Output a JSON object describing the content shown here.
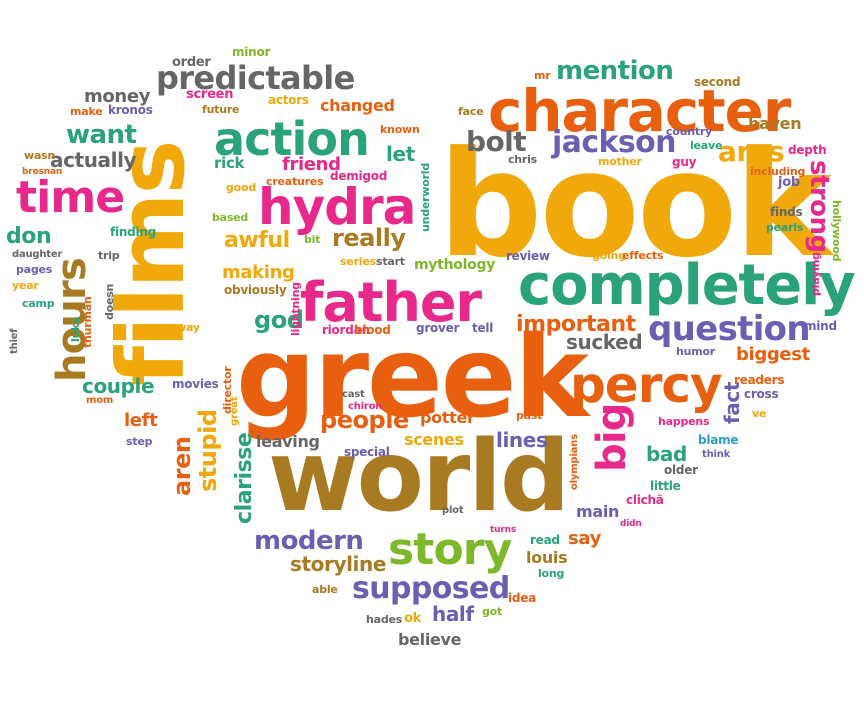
{
  "words": [
    {
      "text": "book",
      "color": "c-ye"
    },
    {
      "text": "greek",
      "color": "c-or"
    },
    {
      "text": "world",
      "color": "c-br"
    },
    {
      "text": "films",
      "color": "c-ye"
    },
    {
      "text": "character",
      "color": "c-or"
    },
    {
      "text": "completely",
      "color": "c-gr"
    },
    {
      "text": "father",
      "color": "c-pi"
    },
    {
      "text": "hydra",
      "color": "c-pi"
    },
    {
      "text": "action",
      "color": "c-gr"
    },
    {
      "text": "story",
      "color": "c-li"
    },
    {
      "text": "percy",
      "color": "c-or"
    },
    {
      "text": "time",
      "color": "c-pi"
    },
    {
      "text": "hours",
      "color": "c-br"
    },
    {
      "text": "question",
      "color": "c-pu"
    },
    {
      "text": "predictable",
      "color": "c-gy"
    },
    {
      "text": "jackson",
      "color": "c-pu"
    },
    {
      "text": "big",
      "color": "c-pi"
    },
    {
      "text": "bolt",
      "color": "c-gy"
    },
    {
      "text": "supposed",
      "color": "c-pu"
    },
    {
      "text": "mention",
      "color": "c-gr"
    },
    {
      "text": "ares",
      "color": "c-ye"
    },
    {
      "text": "strong",
      "color": "c-pi"
    },
    {
      "text": "modern",
      "color": "c-pu"
    },
    {
      "text": "people",
      "color": "c-or"
    },
    {
      "text": "important",
      "color": "c-or"
    },
    {
      "text": "want",
      "color": "c-gr"
    },
    {
      "text": "really",
      "color": "c-br"
    },
    {
      "text": "aren",
      "color": "c-or"
    },
    {
      "text": "stupid",
      "color": "c-ye"
    },
    {
      "text": "clarisse",
      "color": "c-gr"
    },
    {
      "text": "god",
      "color": "c-gr"
    },
    {
      "text": "awful",
      "color": "c-ye"
    },
    {
      "text": "don",
      "color": "c-gr"
    },
    {
      "text": "storyline",
      "color": "c-br"
    },
    {
      "text": "actually",
      "color": "c-gy"
    },
    {
      "text": "money",
      "color": "c-gy"
    },
    {
      "text": "let",
      "color": "c-gr"
    },
    {
      "text": "friend",
      "color": "c-pi"
    },
    {
      "text": "couple",
      "color": "c-gr"
    },
    {
      "text": "biggest",
      "color": "c-or"
    },
    {
      "text": "half",
      "color": "c-pu"
    },
    {
      "text": "lines",
      "color": "c-pu"
    },
    {
      "text": "sucked",
      "color": "c-gy"
    },
    {
      "text": "bad",
      "color": "c-gr"
    },
    {
      "text": "fact",
      "color": "c-pu"
    },
    {
      "text": "potter",
      "color": "c-or"
    },
    {
      "text": "changed",
      "color": "c-or"
    },
    {
      "text": "making",
      "color": "c-ye"
    },
    {
      "text": "left",
      "color": "c-or"
    },
    {
      "text": "haven",
      "color": "c-br"
    },
    {
      "text": "mythology",
      "color": "c-li"
    },
    {
      "text": "leaving",
      "color": "c-gy"
    },
    {
      "text": "scenes",
      "color": "c-ye"
    },
    {
      "text": "say",
      "color": "c-or"
    },
    {
      "text": "main",
      "color": "c-pu"
    },
    {
      "text": "believe",
      "color": "c-gy"
    },
    {
      "text": "louis",
      "color": "c-br"
    },
    {
      "text": "screen",
      "color": "c-pi"
    },
    {
      "text": "rick",
      "color": "c-gr"
    },
    {
      "text": "minor",
      "color": "c-li"
    },
    {
      "text": "order",
      "color": "c-gy"
    },
    {
      "text": "make",
      "color": "c-or"
    },
    {
      "text": "kronos",
      "color": "c-pu"
    },
    {
      "text": "future",
      "color": "c-br"
    },
    {
      "text": "actors",
      "color": "c-ye"
    },
    {
      "text": "known",
      "color": "c-or"
    },
    {
      "text": "face",
      "color": "c-br"
    },
    {
      "text": "mr",
      "color": "c-or"
    },
    {
      "text": "second",
      "color": "c-br"
    },
    {
      "text": "country",
      "color": "c-pu"
    },
    {
      "text": "leave",
      "color": "c-gr"
    },
    {
      "text": "chris",
      "color": "c-gy"
    },
    {
      "text": "mother",
      "color": "c-ye"
    },
    {
      "text": "guy",
      "color": "c-pi"
    },
    {
      "text": "depth",
      "color": "c-pi"
    },
    {
      "text": "including",
      "color": "c-or"
    },
    {
      "text": "job",
      "color": "c-pu"
    },
    {
      "text": "wasn",
      "color": "c-br"
    },
    {
      "text": "good",
      "color": "c-ye"
    },
    {
      "text": "creatures",
      "color": "c-or"
    },
    {
      "text": "demigod",
      "color": "c-pi"
    },
    {
      "text": "underworld",
      "color": "c-gr"
    },
    {
      "text": "based",
      "color": "c-li"
    },
    {
      "text": "finding",
      "color": "c-gr"
    },
    {
      "text": "bit",
      "color": "c-li"
    },
    {
      "text": "series",
      "color": "c-ye"
    },
    {
      "text": "start",
      "color": "c-gy"
    },
    {
      "text": "review",
      "color": "c-pu"
    },
    {
      "text": "going",
      "color": "c-ye"
    },
    {
      "text": "effects",
      "color": "c-or"
    },
    {
      "text": "finds",
      "color": "c-gy"
    },
    {
      "text": "pearls",
      "color": "c-gr"
    },
    {
      "text": "playing",
      "color": "c-pi"
    },
    {
      "text": "hollywood",
      "color": "c-li"
    },
    {
      "text": "daughter",
      "color": "c-gy"
    },
    {
      "text": "pages",
      "color": "c-pu"
    },
    {
      "text": "trip",
      "color": "c-gy"
    },
    {
      "text": "year",
      "color": "c-ye"
    },
    {
      "text": "camp",
      "color": "c-gr"
    },
    {
      "text": "luke",
      "color": "c-gr"
    },
    {
      "text": "thurman",
      "color": "c-or"
    },
    {
      "text": "doesn",
      "color": "c-gy"
    },
    {
      "text": "obviously",
      "color": "c-br"
    },
    {
      "text": "lightning",
      "color": "c-pi"
    },
    {
      "text": "riordan",
      "color": "c-pi"
    },
    {
      "text": "blood",
      "color": "c-or"
    },
    {
      "text": "grover",
      "color": "c-pu"
    },
    {
      "text": "tell",
      "color": "c-pu"
    },
    {
      "text": "humor",
      "color": "c-pu"
    },
    {
      "text": "mind",
      "color": "c-pu"
    },
    {
      "text": "thief",
      "color": "c-gy"
    },
    {
      "text": "way",
      "color": "c-ye"
    },
    {
      "text": "movies",
      "color": "c-pu"
    },
    {
      "text": "director",
      "color": "c-or"
    },
    {
      "text": "great",
      "color": "c-ye"
    },
    {
      "text": "mom",
      "color": "c-or"
    },
    {
      "text": "step",
      "color": "c-pu"
    },
    {
      "text": "cast",
      "color": "c-gy"
    },
    {
      "text": "chiron",
      "color": "c-pi"
    },
    {
      "text": "past",
      "color": "c-or"
    },
    {
      "text": "readers",
      "color": "c-or"
    },
    {
      "text": "cross",
      "color": "c-pu"
    },
    {
      "text": "ve",
      "color": "c-ye"
    },
    {
      "text": "happens",
      "color": "c-pi"
    },
    {
      "text": "blame",
      "color": "c-bl"
    },
    {
      "text": "think",
      "color": "c-pu"
    },
    {
      "text": "older",
      "color": "c-gy"
    },
    {
      "text": "little",
      "color": "c-gr"
    },
    {
      "text": "clichã",
      "color": "c-pi"
    },
    {
      "text": "didn",
      "color": "c-pi"
    },
    {
      "text": "special",
      "color": "c-pu"
    },
    {
      "text": "olympians",
      "color": "c-or"
    },
    {
      "text": "plot",
      "color": "c-gy"
    },
    {
      "text": "turns",
      "color": "c-pi"
    },
    {
      "text": "read",
      "color": "c-gr"
    },
    {
      "text": "long",
      "color": "c-gr"
    },
    {
      "text": "brosnan",
      "color": "c-or"
    },
    {
      "text": "able",
      "color": "c-br"
    },
    {
      "text": "hades",
      "color": "c-gy"
    },
    {
      "text": "ok",
      "color": "c-ye"
    },
    {
      "text": "got",
      "color": "c-li"
    },
    {
      "text": "idea",
      "color": "c-or"
    }
  ]
}
